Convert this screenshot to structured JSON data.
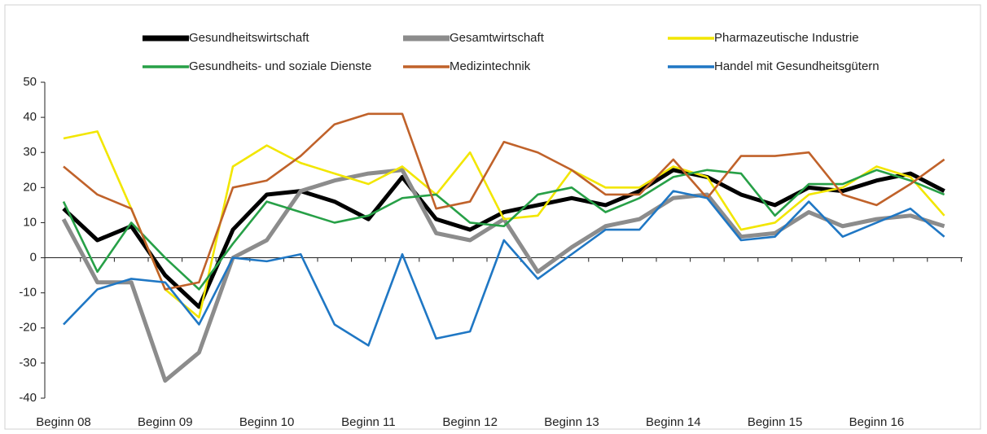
{
  "chart_data": {
    "type": "line",
    "categories": [
      "Beginn 08",
      null,
      null,
      "Beginn 09",
      null,
      null,
      "Beginn 10",
      null,
      null,
      "Beginn 11",
      null,
      null,
      "Beginn 12",
      null,
      null,
      "Beginn 13",
      null,
      null,
      "Beginn 14",
      null,
      null,
      "Beginn 15",
      null,
      null,
      "Beginn 16",
      null,
      null
    ],
    "series": [
      {
        "name": "Gesundheitswirtschaft",
        "color": "#000000",
        "values": [
          14,
          5,
          9,
          -5,
          -14,
          8,
          18,
          19,
          16,
          11,
          23,
          11,
          8,
          13,
          15,
          17,
          15,
          19,
          25,
          23,
          18,
          15,
          20,
          19,
          22,
          24,
          19
        ]
      },
      {
        "name": "Gesamtwirtschaft",
        "color": "#8c8c8c",
        "values": [
          11,
          -7,
          -7,
          -35,
          -27,
          0,
          5,
          19,
          22,
          24,
          25,
          7,
          5,
          11,
          -4,
          3,
          9,
          11,
          17,
          18,
          6,
          7,
          13,
          9,
          11,
          12,
          9
        ]
      },
      {
        "name": "Pharmazeutische Industrie",
        "color": "#f2e600",
        "values": [
          34,
          36,
          14,
          -9,
          -17,
          26,
          32,
          27,
          24,
          21,
          26,
          18,
          30,
          11,
          12,
          25,
          20,
          20,
          26,
          23,
          8,
          10,
          18,
          20,
          26,
          23,
          12
        ]
      },
      {
        "name": "Gesundheits- und soziale Dienste",
        "color": "#27a047",
        "values": [
          16,
          -4,
          10,
          0,
          -9,
          4,
          16,
          13,
          10,
          12,
          17,
          18,
          10,
          9,
          18,
          20,
          13,
          17,
          23,
          25,
          24,
          12,
          21,
          21,
          25,
          22,
          18
        ]
      },
      {
        "name": "Medizintechnik",
        "color": "#c0622a",
        "values": [
          26,
          18,
          14,
          -9,
          -7,
          20,
          22,
          29,
          38,
          41,
          41,
          14,
          16,
          33,
          30,
          25,
          18,
          18,
          28,
          17,
          29,
          29,
          30,
          18,
          15,
          21,
          28
        ]
      },
      {
        "name": "Handel mit Gesundheitsgütern",
        "color": "#1f77c4",
        "values": [
          -19,
          -9,
          -6,
          -7,
          -19,
          0,
          -1,
          1,
          -19,
          -25,
          1,
          -23,
          -21,
          5,
          -6,
          1,
          8,
          8,
          19,
          17,
          5,
          6,
          16,
          6,
          10,
          14,
          6
        ]
      }
    ],
    "ylim": [
      -40,
      50
    ],
    "yticks": [
      -40,
      -30,
      -20,
      -10,
      0,
      10,
      20,
      30,
      40,
      50
    ],
    "grid": false
  }
}
